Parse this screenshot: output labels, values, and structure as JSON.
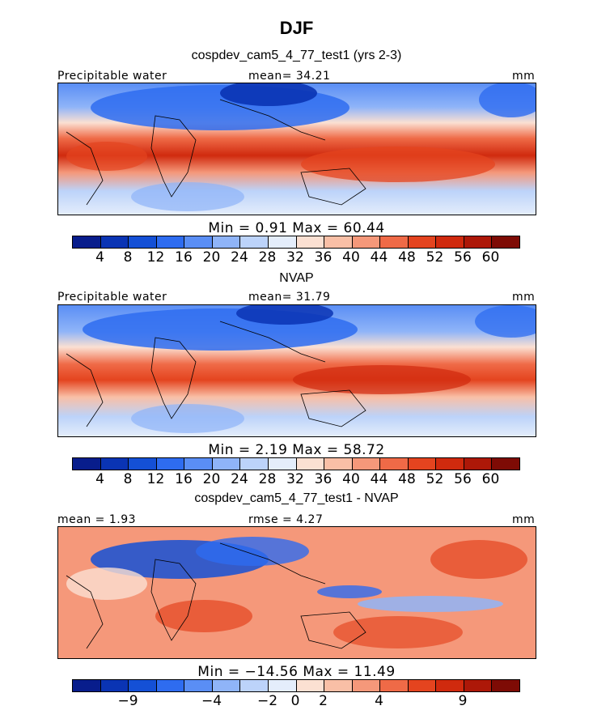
{
  "header": {
    "season": "DJF",
    "model_title": "cospdev_cam5_4_77_test1 (yrs 2-3)",
    "obs_title": "NVAP",
    "diff_title": "cospdev_cam5_4_77_test1 - NVAP"
  },
  "panel1": {
    "left_label": "Precipitable water",
    "center_label": "mean=  34.21",
    "units": "mm",
    "min_max": "Min =     0.91  Max =    60.44"
  },
  "panel2": {
    "left_label": "Precipitable water",
    "center_label": "mean=  31.79",
    "units": "mm",
    "min_max": "Min =     2.19  Max =    58.72"
  },
  "panel3": {
    "left_label": "mean =      1.93",
    "center_label": "rmse =     4.27",
    "units": "mm",
    "min_max": "Min = −14.56  Max =    11.49"
  },
  "colorbar_abs": {
    "colors": [
      "#081d8c",
      "#0a34b4",
      "#1450d6",
      "#2e6cf0",
      "#5a8ef5",
      "#8fb4f8",
      "#bcd3fa",
      "#e4edfb",
      "#fbe0d2",
      "#f9bfa6",
      "#f5987a",
      "#ef6a47",
      "#e4441f",
      "#d02a0e",
      "#ad1808",
      "#7e0b05"
    ],
    "ticks": [
      "4",
      "8",
      "12",
      "16",
      "20",
      "24",
      "28",
      "32",
      "36",
      "40",
      "44",
      "48",
      "52",
      "56",
      "60"
    ]
  },
  "colorbar_diff": {
    "colors": [
      "#081d8c",
      "#0a34b4",
      "#1450d6",
      "#2e6cf0",
      "#5a8ef5",
      "#8fb4f8",
      "#bcd3fa",
      "#e4edfb",
      "#fbe0d2",
      "#f9bfa6",
      "#f5987a",
      "#ef6a47",
      "#e4441f",
      "#d02a0e",
      "#ad1808",
      "#7e0b05"
    ],
    "ticks": [
      "−9",
      "−4",
      "−2",
      "0",
      "2",
      "4",
      "9"
    ]
  }
}
